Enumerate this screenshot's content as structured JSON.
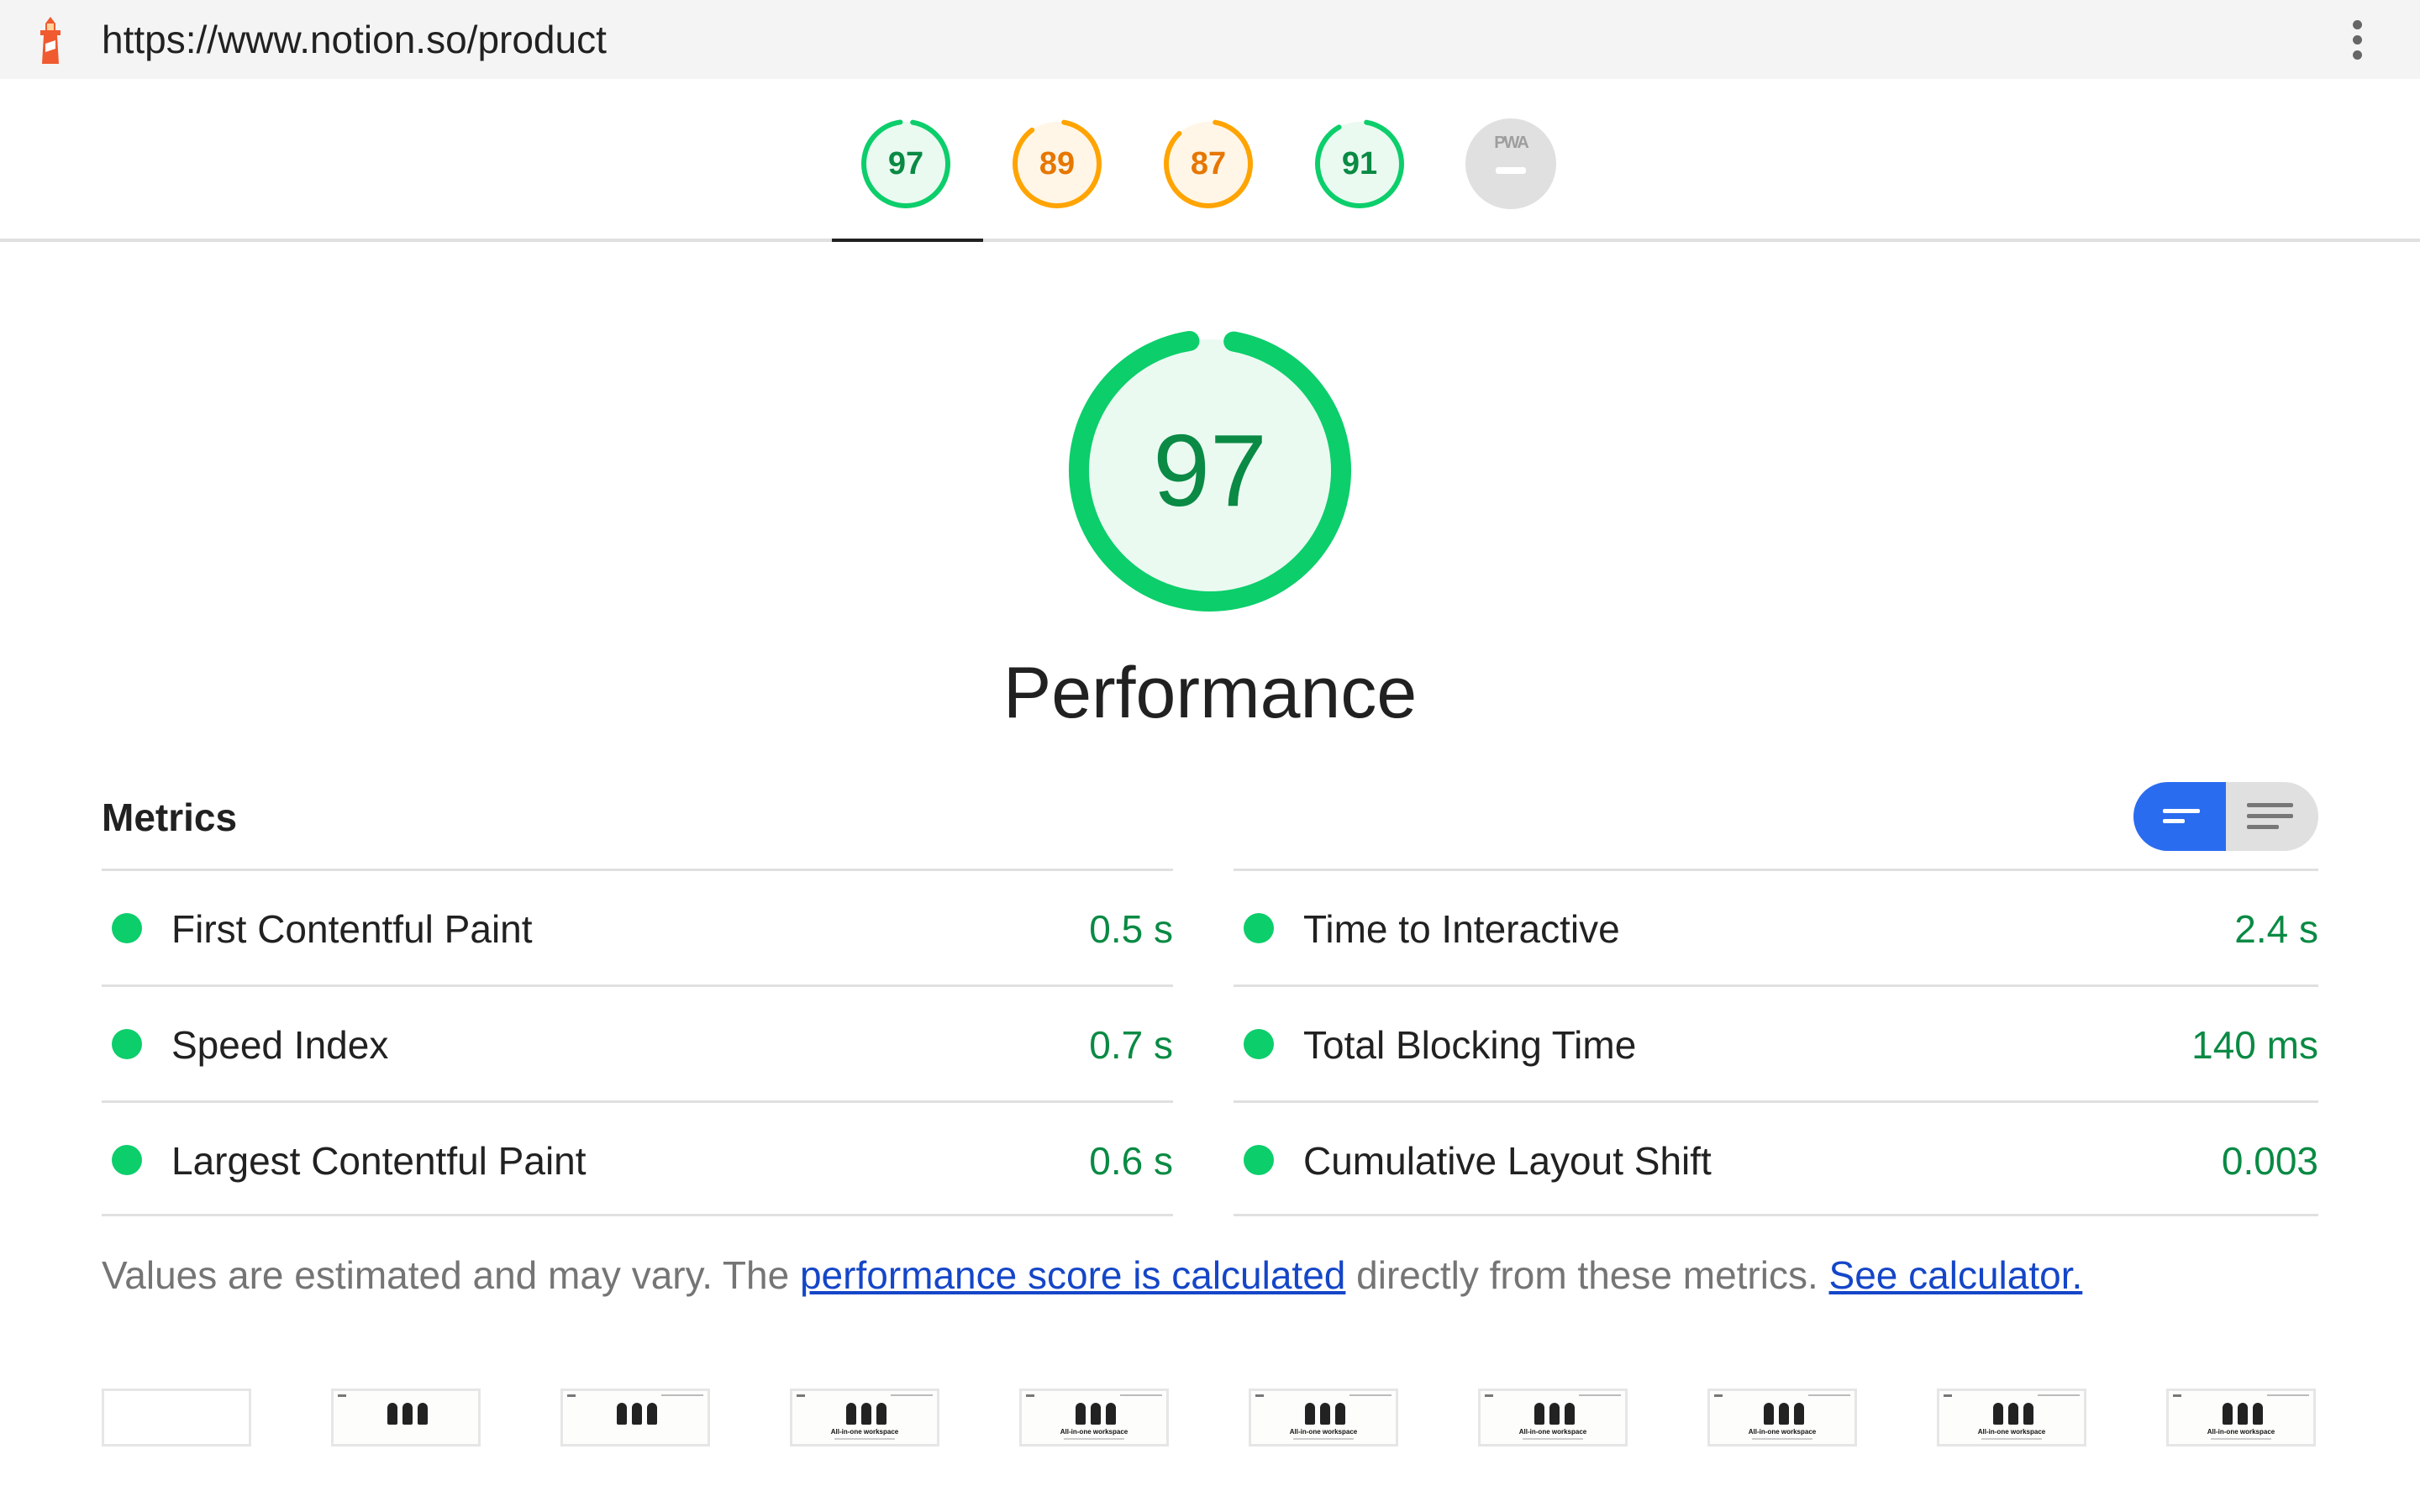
{
  "topbar": {
    "icon": "lighthouse-icon",
    "url": "https://www.notion.so/product",
    "menu_icon": "kebab-menu-icon"
  },
  "colors": {
    "pass": "#0cce6b",
    "pass_text": "#0a8a44",
    "average": "#ffa400",
    "average_text": "#e67700",
    "pwa": "#e0e0e0",
    "link": "#1546c8",
    "toggle_active": "#2a6cf0"
  },
  "gauges": [
    {
      "score": 97,
      "label": "97",
      "rating": "pass",
      "selected": true
    },
    {
      "score": 89,
      "label": "89",
      "rating": "average",
      "selected": false
    },
    {
      "score": 87,
      "label": "87",
      "rating": "average",
      "selected": false
    },
    {
      "score": 91,
      "label": "91",
      "rating": "pass",
      "selected": false
    }
  ],
  "pwa_gauge": {
    "label": "PWA",
    "icon": "pwa-badge-icon"
  },
  "performance": {
    "score": 97,
    "label": "97",
    "title": "Performance"
  },
  "metrics": {
    "title": "Metrics",
    "toggle": {
      "active": "compact-view-icon",
      "inactive": "expanded-view-icon"
    },
    "left": [
      {
        "label": "First Contentful Paint",
        "value": "0.5 s",
        "rating": "pass"
      },
      {
        "label": "Speed Index",
        "value": "0.7 s",
        "rating": "pass"
      },
      {
        "label": "Largest Contentful Paint",
        "value": "0.6 s",
        "rating": "pass"
      }
    ],
    "right": [
      {
        "label": "Time to Interactive",
        "value": "2.4 s",
        "rating": "pass"
      },
      {
        "label": "Total Blocking Time",
        "value": "140 ms",
        "rating": "pass"
      },
      {
        "label": "Cumulative Layout Shift",
        "value": "0.003",
        "rating": "pass"
      }
    ]
  },
  "footnote": {
    "text1": "Values are estimated and may vary. The ",
    "link1": "performance score is calculated",
    "text2": " directly from these metrics. ",
    "link2": "See calculator."
  },
  "filmstrip": {
    "frames": [
      "blank",
      "illustration",
      "illustration",
      "full",
      "full",
      "full",
      "full",
      "full",
      "full",
      "full"
    ],
    "frame_heading": "All-in-one workspace"
  }
}
